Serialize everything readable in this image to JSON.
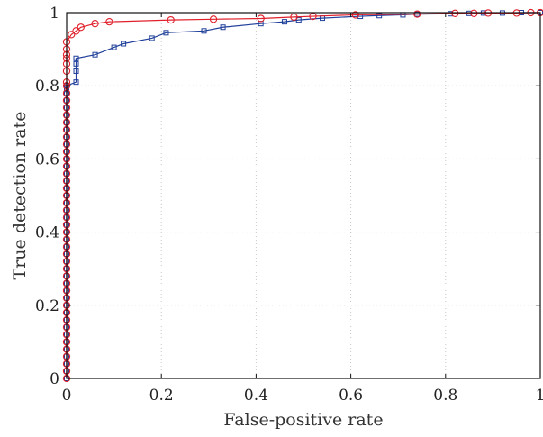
{
  "chart_data": {
    "type": "line",
    "title": "",
    "xlabel": "False-positive rate",
    "ylabel": "True detection rate",
    "xlim": [
      0,
      1
    ],
    "ylim": [
      0,
      1
    ],
    "xticks": [
      "0",
      "0.2",
      "0.4",
      "0.6",
      "0.8",
      "1"
    ],
    "yticks": [
      "0",
      "0.2",
      "0.4",
      "0.6",
      "0.8",
      "1"
    ],
    "grid": true,
    "series": [
      {
        "color": "#1f3f9a",
        "marker": "square",
        "x": [
          0,
          0,
          0,
          0,
          0,
          0,
          0,
          0,
          0,
          0,
          0,
          0,
          0,
          0,
          0,
          0,
          0,
          0,
          0,
          0,
          0,
          0,
          0,
          0,
          0,
          0,
          0,
          0,
          0,
          0,
          0,
          0,
          0,
          0,
          0,
          0,
          0,
          0,
          0,
          0,
          0,
          0,
          0,
          0,
          0,
          0.02,
          0.02,
          0.02,
          0.02,
          0.06,
          0.1,
          0.12,
          0.18,
          0.21,
          0.29,
          0.33,
          0.41,
          0.46,
          0.49,
          0.54,
          0.62,
          0.66,
          0.71,
          0.74,
          0.81,
          0.85,
          0.88,
          0.92,
          0.96,
          1.0
        ],
        "y": [
          0,
          0.02,
          0.04,
          0.06,
          0.08,
          0.1,
          0.12,
          0.14,
          0.16,
          0.18,
          0.2,
          0.22,
          0.24,
          0.26,
          0.28,
          0.3,
          0.32,
          0.34,
          0.36,
          0.38,
          0.4,
          0.42,
          0.44,
          0.46,
          0.48,
          0.5,
          0.52,
          0.54,
          0.56,
          0.58,
          0.6,
          0.62,
          0.64,
          0.66,
          0.68,
          0.7,
          0.72,
          0.74,
          0.76,
          0.78,
          0.79,
          0.8,
          0.8,
          0.8,
          0.8,
          0.81,
          0.84,
          0.86,
          0.875,
          0.885,
          0.905,
          0.915,
          0.93,
          0.945,
          0.95,
          0.96,
          0.97,
          0.975,
          0.98,
          0.985,
          0.99,
          0.992,
          0.994,
          0.996,
          0.997,
          0.998,
          0.999,
          0.999,
          1.0,
          1.0
        ]
      },
      {
        "color": "#e0202a",
        "marker": "circle",
        "x": [
          0,
          0,
          0,
          0,
          0,
          0,
          0,
          0,
          0,
          0,
          0,
          0,
          0,
          0,
          0,
          0,
          0,
          0,
          0,
          0,
          0,
          0,
          0,
          0,
          0,
          0,
          0,
          0,
          0,
          0,
          0,
          0,
          0,
          0,
          0,
          0,
          0,
          0,
          0,
          0,
          0,
          0,
          0,
          0,
          0,
          0,
          0,
          0,
          0.01,
          0.02,
          0.03,
          0.06,
          0.09,
          0.22,
          0.31,
          0.41,
          0.48,
          0.52,
          0.61,
          0.74,
          0.82,
          0.86,
          0.89,
          0.95,
          0.98,
          1.0
        ],
        "y": [
          0,
          0.02,
          0.04,
          0.06,
          0.08,
          0.1,
          0.12,
          0.14,
          0.16,
          0.18,
          0.2,
          0.22,
          0.24,
          0.26,
          0.28,
          0.3,
          0.32,
          0.34,
          0.36,
          0.38,
          0.4,
          0.42,
          0.44,
          0.46,
          0.48,
          0.5,
          0.52,
          0.54,
          0.56,
          0.58,
          0.6,
          0.62,
          0.64,
          0.66,
          0.68,
          0.7,
          0.72,
          0.74,
          0.76,
          0.78,
          0.8,
          0.81,
          0.84,
          0.86,
          0.875,
          0.885,
          0.9,
          0.92,
          0.94,
          0.95,
          0.96,
          0.97,
          0.975,
          0.98,
          0.982,
          0.984,
          0.988,
          0.99,
          0.994,
          0.996,
          0.998,
          0.998,
          0.999,
          0.999,
          1.0,
          1.0
        ]
      }
    ]
  }
}
